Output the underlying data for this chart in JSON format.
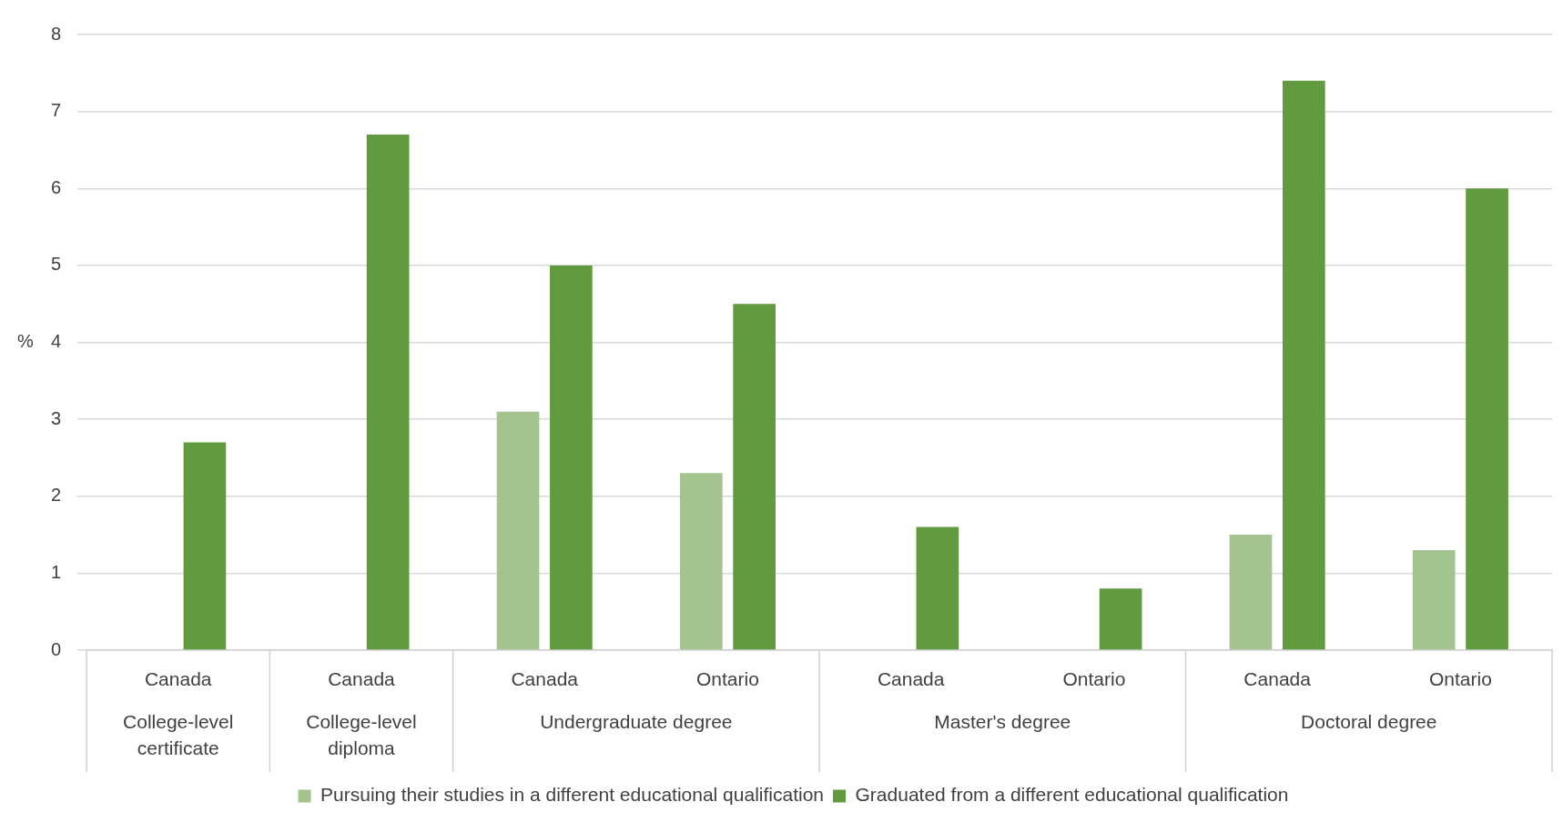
{
  "chart_data": {
    "type": "bar",
    "ylabel": "%",
    "categories": [
      [
        "Canada",
        "College-level certificate"
      ],
      [
        "Canada",
        "College-level diploma"
      ],
      [
        "Canada",
        "Undergraduate degree"
      ],
      [
        "Ontario",
        null
      ],
      [
        "Canada",
        "Master's degree"
      ],
      [
        "Ontario",
        null
      ],
      [
        "Canada",
        "Doctoral degree"
      ],
      [
        "Ontario",
        null
      ]
    ],
    "series": [
      {
        "name": "Pursuing their studies in a different educational qualification",
        "color": "#a3c48f",
        "values": [
          null,
          null,
          3.1,
          2.3,
          null,
          null,
          1.5,
          1.3
        ]
      },
      {
        "name": "Graduated from a different educational qualification",
        "color": "#629b3f",
        "values": [
          2.7,
          6.7,
          5.0,
          4.5,
          1.6,
          0.8,
          7.4,
          6.0
        ]
      }
    ],
    "ylim": [
      0,
      8
    ],
    "yticks": [
      0,
      1,
      2,
      3,
      4,
      5,
      6,
      7,
      8
    ],
    "grid": "y",
    "legend": "bottom"
  }
}
